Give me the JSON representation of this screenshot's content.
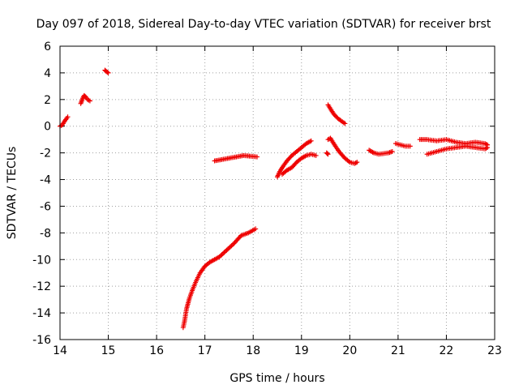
{
  "chart_data": {
    "type": "scatter",
    "title": "Day 097 of 2018, Sidereal Day-to-day VTEC variation (SDTVAR) for receiver brst",
    "xlabel": "GPS time / hours",
    "ylabel": "SDTVAR / TECUs",
    "xlim": [
      14,
      23
    ],
    "ylim": [
      -16,
      6
    ],
    "xticks": [
      14,
      15,
      16,
      17,
      18,
      19,
      20,
      21,
      22,
      23
    ],
    "yticks": [
      6,
      4,
      2,
      0,
      -2,
      -4,
      -6,
      -8,
      -10,
      -12,
      -14,
      -16
    ],
    "grid": true,
    "marker": "+",
    "series_color": "#ee0000",
    "segments": [
      {
        "name": "seg-a",
        "points": [
          [
            14.0,
            0.0
          ],
          [
            14.05,
            0.1
          ],
          [
            14.08,
            0.3
          ],
          [
            14.12,
            0.5
          ],
          [
            14.16,
            0.7
          ]
        ]
      },
      {
        "name": "seg-b",
        "points": [
          [
            14.43,
            1.7
          ],
          [
            14.47,
            2.1
          ],
          [
            14.5,
            2.3
          ],
          [
            14.53,
            2.2
          ],
          [
            14.57,
            2.0
          ],
          [
            14.62,
            1.9
          ]
        ]
      },
      {
        "name": "seg-c",
        "points": [
          [
            14.93,
            4.2
          ],
          [
            14.96,
            4.1
          ],
          [
            15.0,
            4.0
          ]
        ]
      },
      {
        "name": "seg-d",
        "points": [
          [
            16.55,
            -15.1
          ],
          [
            16.58,
            -14.6
          ],
          [
            16.62,
            -13.7
          ],
          [
            16.68,
            -12.9
          ],
          [
            16.75,
            -12.2
          ],
          [
            16.82,
            -11.6
          ],
          [
            16.9,
            -11.0
          ],
          [
            17.0,
            -10.5
          ],
          [
            17.1,
            -10.2
          ],
          [
            17.2,
            -10.0
          ],
          [
            17.3,
            -9.8
          ],
          [
            17.45,
            -9.3
          ],
          [
            17.6,
            -8.8
          ],
          [
            17.75,
            -8.2
          ],
          [
            17.9,
            -8.0
          ],
          [
            18.05,
            -7.7
          ]
        ]
      },
      {
        "name": "seg-e",
        "points": [
          [
            17.2,
            -2.6
          ],
          [
            17.35,
            -2.5
          ],
          [
            17.5,
            -2.4
          ],
          [
            17.65,
            -2.3
          ],
          [
            17.8,
            -2.2
          ],
          [
            17.95,
            -2.25
          ],
          [
            18.08,
            -2.3
          ]
        ]
      },
      {
        "name": "seg-f",
        "points": [
          [
            18.5,
            -3.8
          ],
          [
            18.55,
            -3.4
          ],
          [
            18.62,
            -3.0
          ],
          [
            18.7,
            -2.6
          ],
          [
            18.8,
            -2.2
          ],
          [
            18.9,
            -1.9
          ],
          [
            19.0,
            -1.6
          ],
          [
            19.1,
            -1.3
          ],
          [
            19.2,
            -1.1
          ]
        ]
      },
      {
        "name": "seg-g",
        "points": [
          [
            18.6,
            -3.6
          ],
          [
            18.7,
            -3.3
          ],
          [
            18.8,
            -3.1
          ],
          [
            18.9,
            -2.7
          ],
          [
            19.0,
            -2.4
          ],
          [
            19.1,
            -2.2
          ],
          [
            19.2,
            -2.1
          ],
          [
            19.3,
            -2.2
          ]
        ]
      },
      {
        "name": "seg-h",
        "points": [
          [
            19.52,
            -2.0
          ],
          [
            19.55,
            -2.1
          ]
        ]
      },
      {
        "name": "seg-i",
        "points": [
          [
            19.55,
            -1.0
          ],
          [
            19.6,
            -0.9
          ],
          [
            19.65,
            -1.2
          ],
          [
            19.72,
            -1.6
          ],
          [
            19.8,
            -2.0
          ],
          [
            19.9,
            -2.4
          ],
          [
            20.0,
            -2.7
          ],
          [
            20.1,
            -2.8
          ],
          [
            20.15,
            -2.7
          ]
        ]
      },
      {
        "name": "seg-j",
        "points": [
          [
            19.55,
            1.6
          ],
          [
            19.6,
            1.3
          ],
          [
            19.67,
            0.9
          ],
          [
            19.75,
            0.6
          ],
          [
            19.82,
            0.4
          ],
          [
            19.9,
            0.2
          ]
        ]
      },
      {
        "name": "seg-k",
        "points": [
          [
            20.4,
            -1.8
          ],
          [
            20.5,
            -2.0
          ],
          [
            20.6,
            -2.1
          ],
          [
            20.7,
            -2.05
          ],
          [
            20.8,
            -2.0
          ],
          [
            20.88,
            -1.9
          ]
        ]
      },
      {
        "name": "seg-l",
        "points": [
          [
            20.95,
            -1.3
          ],
          [
            21.05,
            -1.4
          ],
          [
            21.15,
            -1.5
          ],
          [
            21.25,
            -1.5
          ]
        ]
      },
      {
        "name": "seg-m",
        "points": [
          [
            21.45,
            -1.0
          ],
          [
            21.6,
            -1.0
          ],
          [
            21.8,
            -1.1
          ],
          [
            22.0,
            -1.0
          ],
          [
            22.2,
            -1.2
          ],
          [
            22.4,
            -1.3
          ],
          [
            22.6,
            -1.2
          ],
          [
            22.8,
            -1.3
          ],
          [
            22.85,
            -1.4
          ]
        ]
      },
      {
        "name": "seg-n",
        "points": [
          [
            21.6,
            -2.1
          ],
          [
            21.8,
            -1.9
          ],
          [
            22.0,
            -1.7
          ],
          [
            22.2,
            -1.6
          ],
          [
            22.4,
            -1.5
          ],
          [
            22.6,
            -1.6
          ],
          [
            22.8,
            -1.7
          ],
          [
            22.85,
            -1.6
          ]
        ]
      }
    ]
  }
}
